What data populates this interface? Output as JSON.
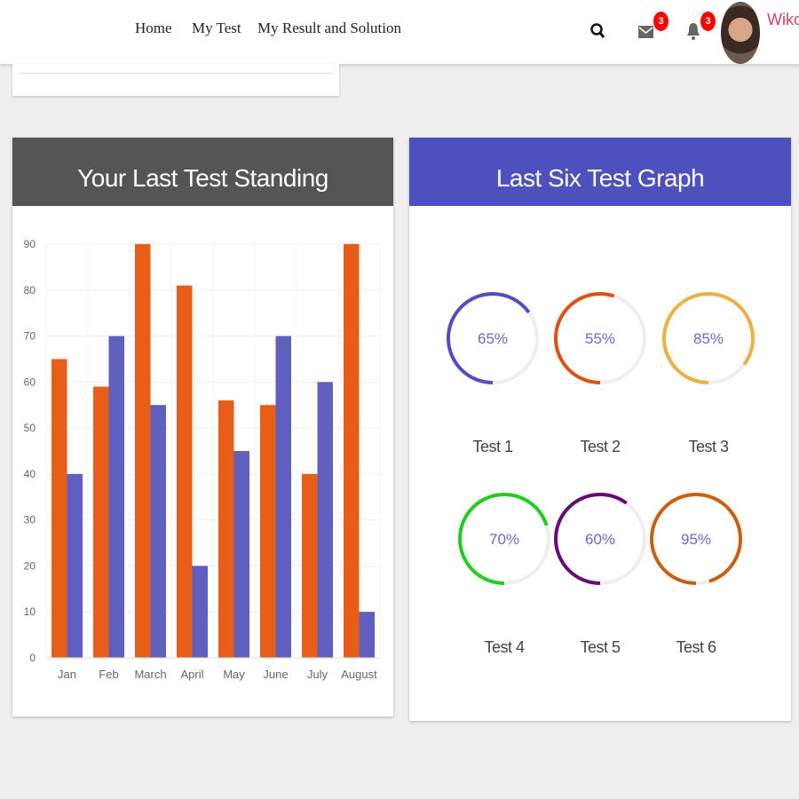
{
  "nav": {
    "items": [
      "Home",
      "My Test",
      "My Result and Solution"
    ],
    "mail_badge": "3",
    "bell_badge": "3",
    "user_name": "Wikol"
  },
  "left_card": {
    "title": "Your Last Test Standing",
    "header_color": "#555555"
  },
  "right_card": {
    "title": "Last Six Test Graph",
    "header_color": "#4e51bd"
  },
  "chart_data": {
    "type": "bar",
    "categories": [
      "Jan",
      "Feb",
      "March",
      "April",
      "May",
      "June",
      "July",
      "August"
    ],
    "series": [
      {
        "color": "#e85d17",
        "values": [
          65,
          59,
          90,
          81,
          56,
          55,
          40,
          90
        ]
      },
      {
        "color": "#5f5fc0",
        "values": [
          40,
          70,
          55,
          20,
          45,
          70,
          60,
          10
        ]
      }
    ],
    "ylim": [
      0,
      90
    ],
    "yticks": [
      0,
      10,
      20,
      30,
      40,
      50,
      60,
      70,
      80,
      90
    ],
    "grid": true
  },
  "tests": [
    {
      "label": "Test 1",
      "percent": "65%",
      "value": 65,
      "color": "#4f4fbf"
    },
    {
      "label": "Test 2",
      "percent": "55%",
      "value": 55,
      "color": "#e0500f"
    },
    {
      "label": "Test 3",
      "percent": "85%",
      "value": 85,
      "color": "#f0b040"
    },
    {
      "label": "Test 4",
      "percent": "70%",
      "value": 70,
      "color": "#22cc22"
    },
    {
      "label": "Test 5",
      "percent": "60%",
      "value": 60,
      "color": "#6a0a7a"
    },
    {
      "label": "Test 6",
      "percent": "95%",
      "value": 95,
      "color": "#c8600f"
    }
  ]
}
